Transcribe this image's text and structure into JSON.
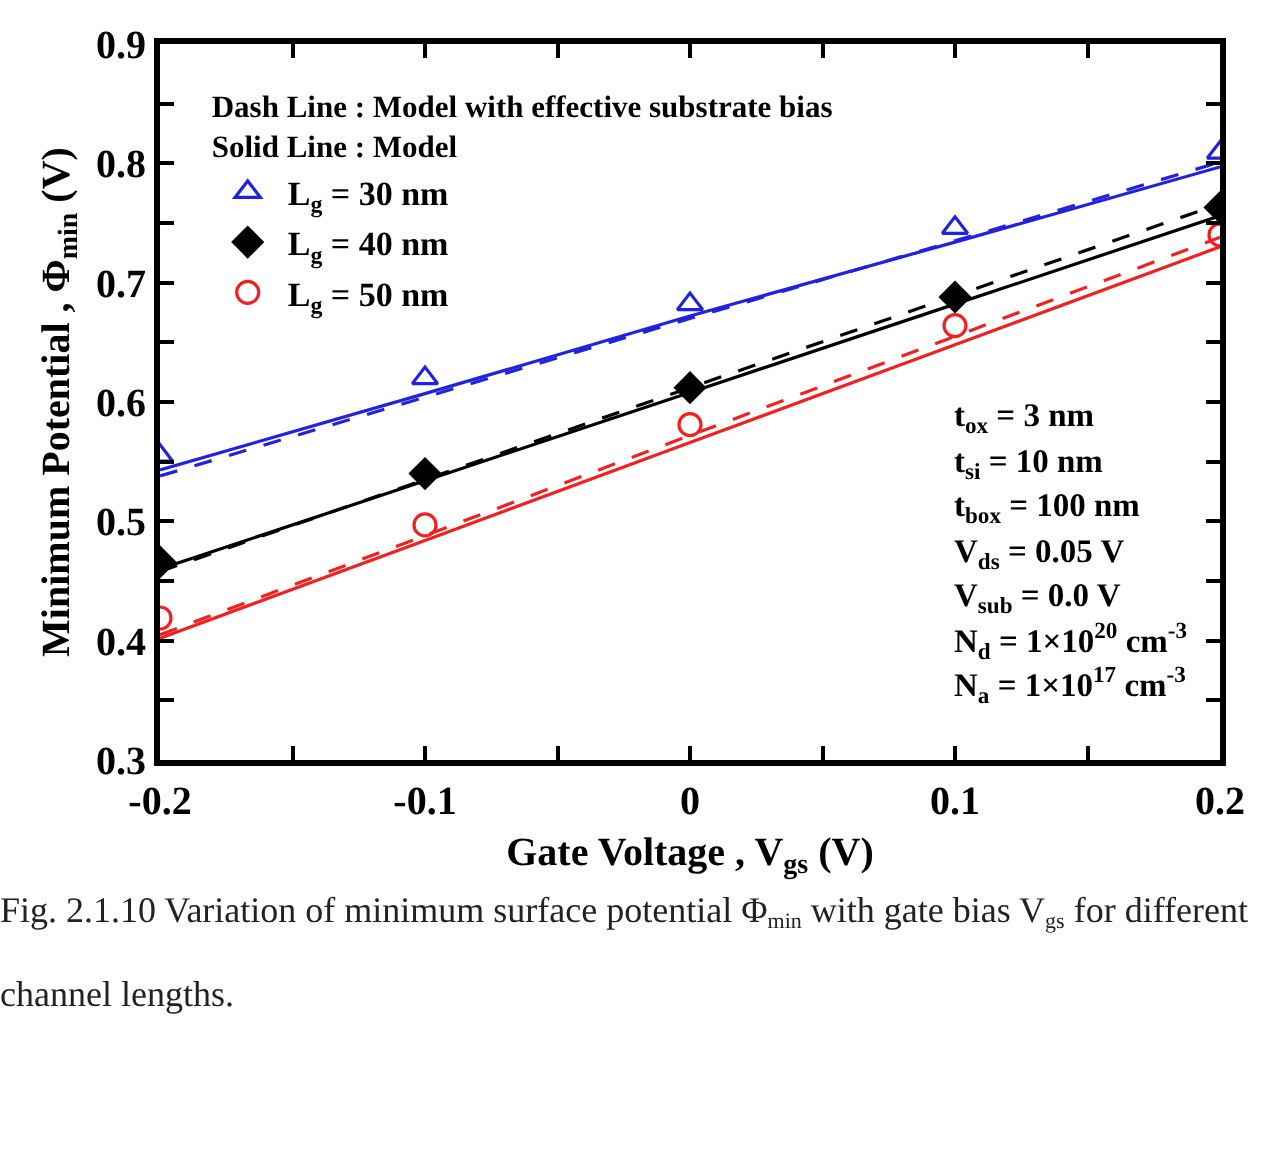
{
  "chart_data": {
    "type": "scatter",
    "xlabel": "Gate Voltage , V$_{gs}$ (V)",
    "ylabel": "Minimum Potential , Φ$_{min}$ (V)",
    "legend_title": "Dash Line : Model with effective substrate bias\nSolid Line : Model",
    "x": [
      -0.2,
      -0.1,
      0,
      0.1,
      0.2
    ],
    "series": [
      {
        "name": "L$_{g}$ = 30 nm",
        "marker": "triangle",
        "color": "#2222dd",
        "values": [
          0.555,
          0.62,
          0.682,
          0.746,
          0.809
        ]
      },
      {
        "name": "L$_{g}$ = 40 nm",
        "marker": "diamond",
        "color": "#000000",
        "values": [
          0.466,
          0.54,
          0.612,
          0.688,
          0.763
        ]
      },
      {
        "name": "L$_{g}$ = 50 nm",
        "marker": "circle",
        "color": "#ee2222",
        "values": [
          0.419,
          0.497,
          0.581,
          0.664,
          0.74
        ]
      },
      {
        "type": "line",
        "line_style": "solid",
        "color": "#2222dd",
        "values": [
          0.543,
          0.607,
          0.672,
          0.734,
          0.797
        ]
      },
      {
        "type": "line",
        "line_style": "dashed",
        "color": "#2222dd",
        "values": [
          0.538,
          0.604,
          0.67,
          0.735,
          0.801
        ]
      },
      {
        "type": "line",
        "line_style": "solid",
        "color": "#000000",
        "values": [
          0.46,
          0.534,
          0.608,
          0.682,
          0.756
        ]
      },
      {
        "type": "line",
        "line_style": "dashed",
        "color": "#000000",
        "values": [
          0.458,
          0.535,
          0.612,
          0.689,
          0.766
        ]
      },
      {
        "type": "line",
        "line_style": "solid",
        "color": "#ee2222",
        "values": [
          0.402,
          0.484,
          0.566,
          0.648,
          0.73
        ]
      },
      {
        "type": "line",
        "line_style": "dashed",
        "color": "#ee2222",
        "values": [
          0.405,
          0.488,
          0.572,
          0.655,
          0.738
        ]
      }
    ],
    "xlim": [
      -0.2,
      0.2
    ],
    "xticks": [
      -0.2,
      {
        "value": -0.15,
        "label": null
      },
      -0.1,
      {
        "value": -0.05,
        "label": null
      },
      0,
      {
        "value": 0.05,
        "label": null
      },
      0.1,
      {
        "value": 0.15,
        "label": null
      },
      0.2
    ],
    "ylim": [
      0.3,
      0.9
    ],
    "yticks": [
      0.3,
      {
        "value": 0.35,
        "label": null
      },
      0.4,
      {
        "value": 0.45,
        "label": null
      },
      0.5,
      {
        "value": 0.55,
        "label": null
      },
      0.6,
      {
        "value": 0.65,
        "label": null
      },
      0.7,
      {
        "value": 0.75,
        "label": null
      },
      0.8,
      {
        "value": 0.85,
        "label": null
      },
      0.9
    ],
    "legend": "top left",
    "annotations": [
      "t$_{ox}$ = 3 nm",
      "t$_{si}$ = 10 nm",
      "t$_{box}$ = 100 nm",
      "V$_{ds}$ = 0.05 V",
      "V$_{sub}$ = 0.0 V",
      "N$_{d}$ = 1×10$^{20}$ cm$^{-3}$",
      "N$_{a}$ = 1×10$^{17}$ cm$^{-3}$",
      "Fig. 2.1.10 Variation of minimum surface potential  Φ$_{min}$ with gate bias V$_{gs}$ for different channel lengths."
    ]
  }
}
